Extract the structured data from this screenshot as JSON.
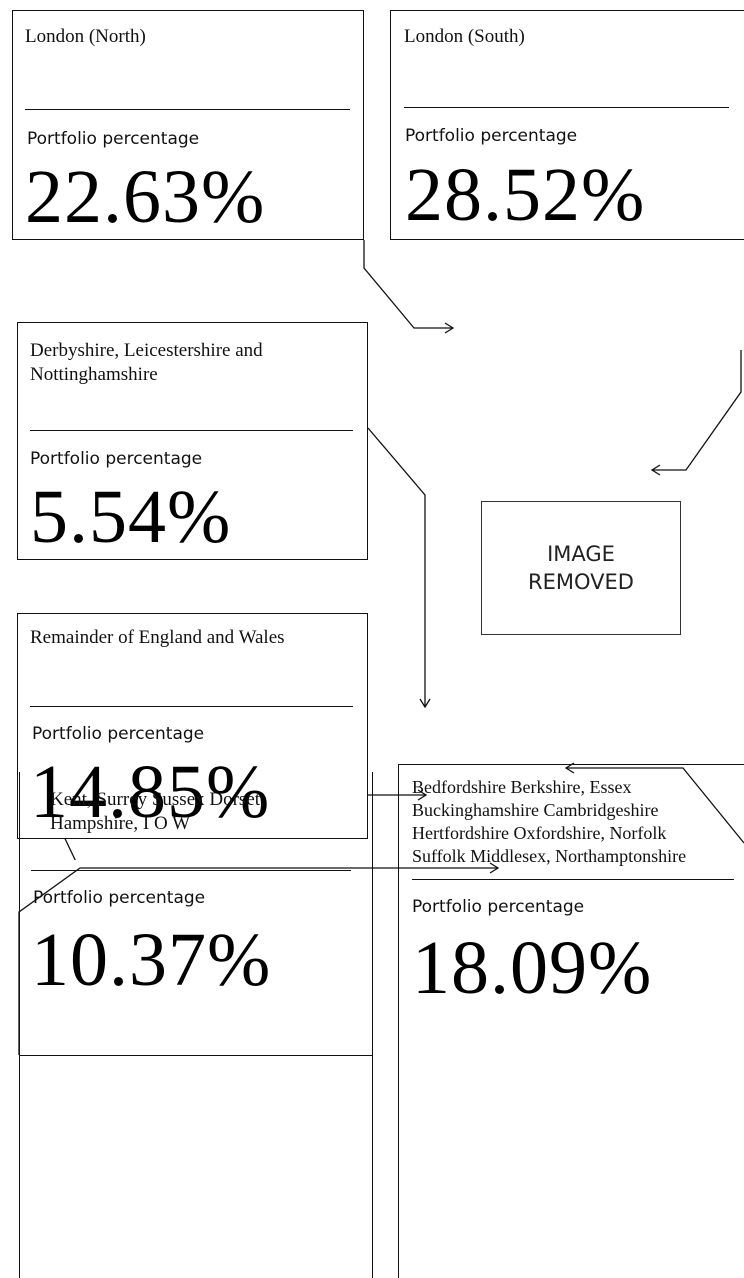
{
  "placeholder": {
    "line1": "IMAGE",
    "line2": "REMOVED"
  },
  "regions": [
    {
      "id": "london-north",
      "lines": [
        "London (North)"
      ],
      "label": "Portfolio percentage",
      "value": "22.63%"
    },
    {
      "id": "london-south",
      "lines": [
        "London (South)"
      ],
      "label": "Portfolio percentage",
      "value": "28.52%"
    },
    {
      "id": "east-midlands",
      "lines": [
        "Derbyshire, Leicestershire and",
        "Nottinghamshire"
      ],
      "label": "Portfolio percentage",
      "value": "5.54%"
    },
    {
      "id": "remainder",
      "lines": [
        "Remainder of England and Wales"
      ],
      "label": "Portfolio percentage",
      "value": "14.85%"
    },
    {
      "id": "south-east",
      "lines": [
        "Kent, Surrey Sussex Dorset,",
        "Hampshire, I O W"
      ],
      "label": "Portfolio percentage",
      "value": "10.37%"
    },
    {
      "id": "home-counties",
      "lines": [
        "Bedfordshire Berkshire, Essex",
        "Buckinghamshire Cambridgeshire",
        "Hertfordshire Oxfordshire, Norfolk",
        "Suffolk Middlesex, Northamptonshire"
      ],
      "label": "Portfolio percentage",
      "value": "18.09%"
    }
  ]
}
